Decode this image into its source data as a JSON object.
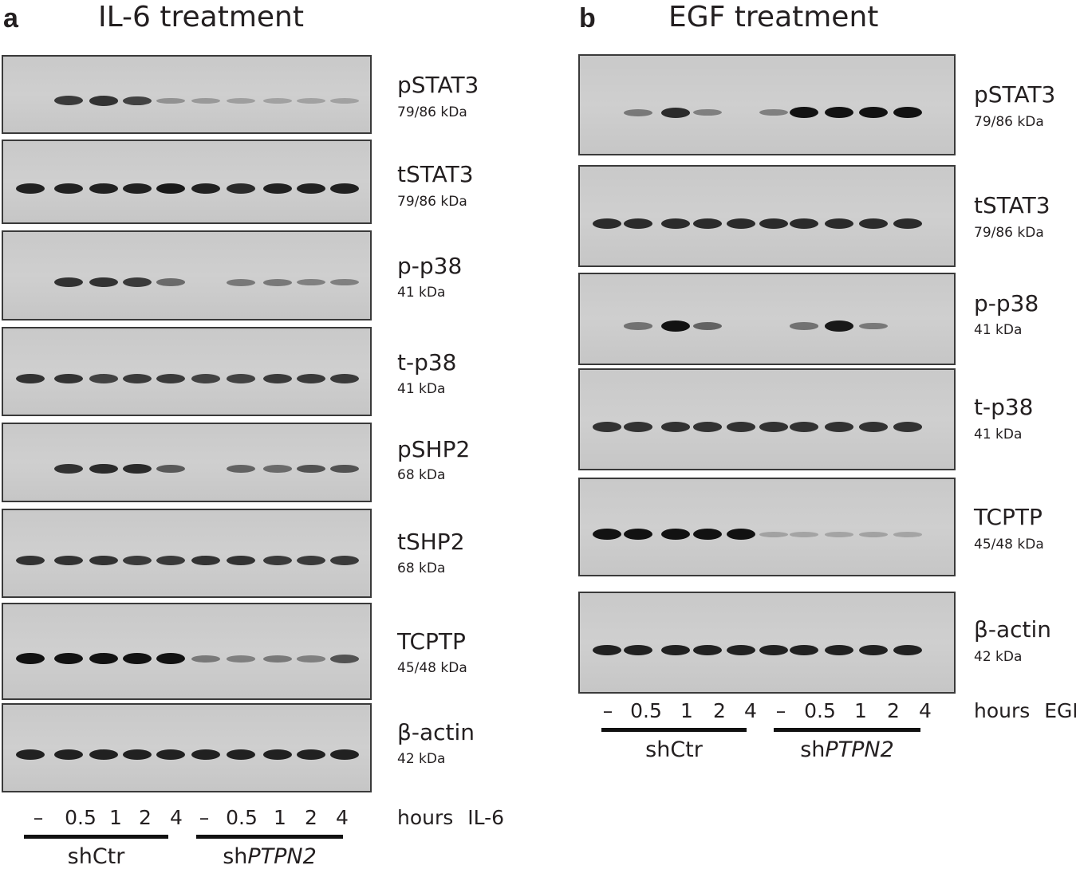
{
  "panel_a": {
    "letter": "a",
    "title": "IL-6 treatment",
    "blots": [
      {
        "protein": "pSTAT3",
        "kda": "79/86 kDa"
      },
      {
        "protein": "tSTAT3",
        "kda": "79/86 kDa"
      },
      {
        "protein": "p-p38",
        "kda": "41 kDa"
      },
      {
        "protein": "t-p38",
        "kda": "41 kDa"
      },
      {
        "protein": "pSHP2",
        "kda": "68 kDa"
      },
      {
        "protein": "tSHP2",
        "kda": "68 kDa"
      },
      {
        "protein": "TCPTP",
        "kda": "45/48 kDa"
      },
      {
        "protein": "β-actin",
        "kda": "42 kDa"
      }
    ],
    "lanes": [
      "–",
      "0.5",
      "1",
      "2",
      "4",
      "–",
      "0.5",
      "1",
      "2",
      "4"
    ],
    "hours_label": "hours IL-6",
    "groups": [
      "shCtr",
      "sh",
      "PTPN2"
    ],
    "intensities": [
      [
        0,
        0.75,
        0.8,
        0.7,
        0.2,
        0.15,
        0.12,
        0.1,
        0.1,
        0.1
      ],
      [
        0.9,
        0.9,
        0.9,
        0.9,
        0.95,
        0.9,
        0.85,
        0.9,
        0.9,
        0.9
      ],
      [
        0,
        0.8,
        0.8,
        0.75,
        0.45,
        0,
        0.35,
        0.35,
        0.3,
        0.3
      ],
      [
        0.8,
        0.8,
        0.7,
        0.75,
        0.75,
        0.7,
        0.7,
        0.75,
        0.75,
        0.75
      ],
      [
        0,
        0.8,
        0.85,
        0.85,
        0.55,
        0,
        0.5,
        0.45,
        0.6,
        0.6
      ],
      [
        0.8,
        0.8,
        0.8,
        0.75,
        0.75,
        0.8,
        0.8,
        0.75,
        0.75,
        0.75
      ],
      [
        1,
        1,
        1,
        1,
        1,
        0.35,
        0.3,
        0.35,
        0.3,
        0.6
      ],
      [
        0.9,
        0.9,
        0.9,
        0.9,
        0.9,
        0.9,
        0.9,
        0.9,
        0.9,
        0.9
      ]
    ]
  },
  "panel_b": {
    "letter": "b",
    "title": "EGF treatment",
    "blots": [
      {
        "protein": "pSTAT3",
        "kda": "79/86 kDa"
      },
      {
        "protein": "tSTAT3",
        "kda": "79/86 kDa"
      },
      {
        "protein": "p-p38",
        "kda": "41 kDa"
      },
      {
        "protein": "t-p38",
        "kda": "41 kDa"
      },
      {
        "protein": "TCPTP",
        "kda": "45/48 kDa"
      },
      {
        "protein": "β-actin",
        "kda": "42 kDa"
      }
    ],
    "lanes": [
      "–",
      "0.5",
      "1",
      "2",
      "4",
      "–",
      "0.5",
      "1",
      "2",
      "4"
    ],
    "hours_label": "hours EGF",
    "groups": [
      "shCtr",
      "sh",
      "PTPN2"
    ],
    "intensities": [
      [
        0,
        0.35,
        0.85,
        0.3,
        0,
        0.3,
        1,
        1,
        1,
        1
      ],
      [
        0.85,
        0.85,
        0.85,
        0.85,
        0.85,
        0.85,
        0.85,
        0.85,
        0.85,
        0.85
      ],
      [
        0,
        0.4,
        1,
        0.5,
        0,
        0,
        0.4,
        0.95,
        0.35,
        0
      ],
      [
        0.8,
        0.8,
        0.8,
        0.8,
        0.8,
        0.8,
        0.8,
        0.8,
        0.8,
        0.8
      ],
      [
        1,
        1,
        1,
        1,
        1,
        0.1,
        0.08,
        0.08,
        0.1,
        0.08
      ],
      [
        0.9,
        0.9,
        0.9,
        0.9,
        0.9,
        0.9,
        0.9,
        0.9,
        0.9,
        0.9
      ]
    ]
  }
}
